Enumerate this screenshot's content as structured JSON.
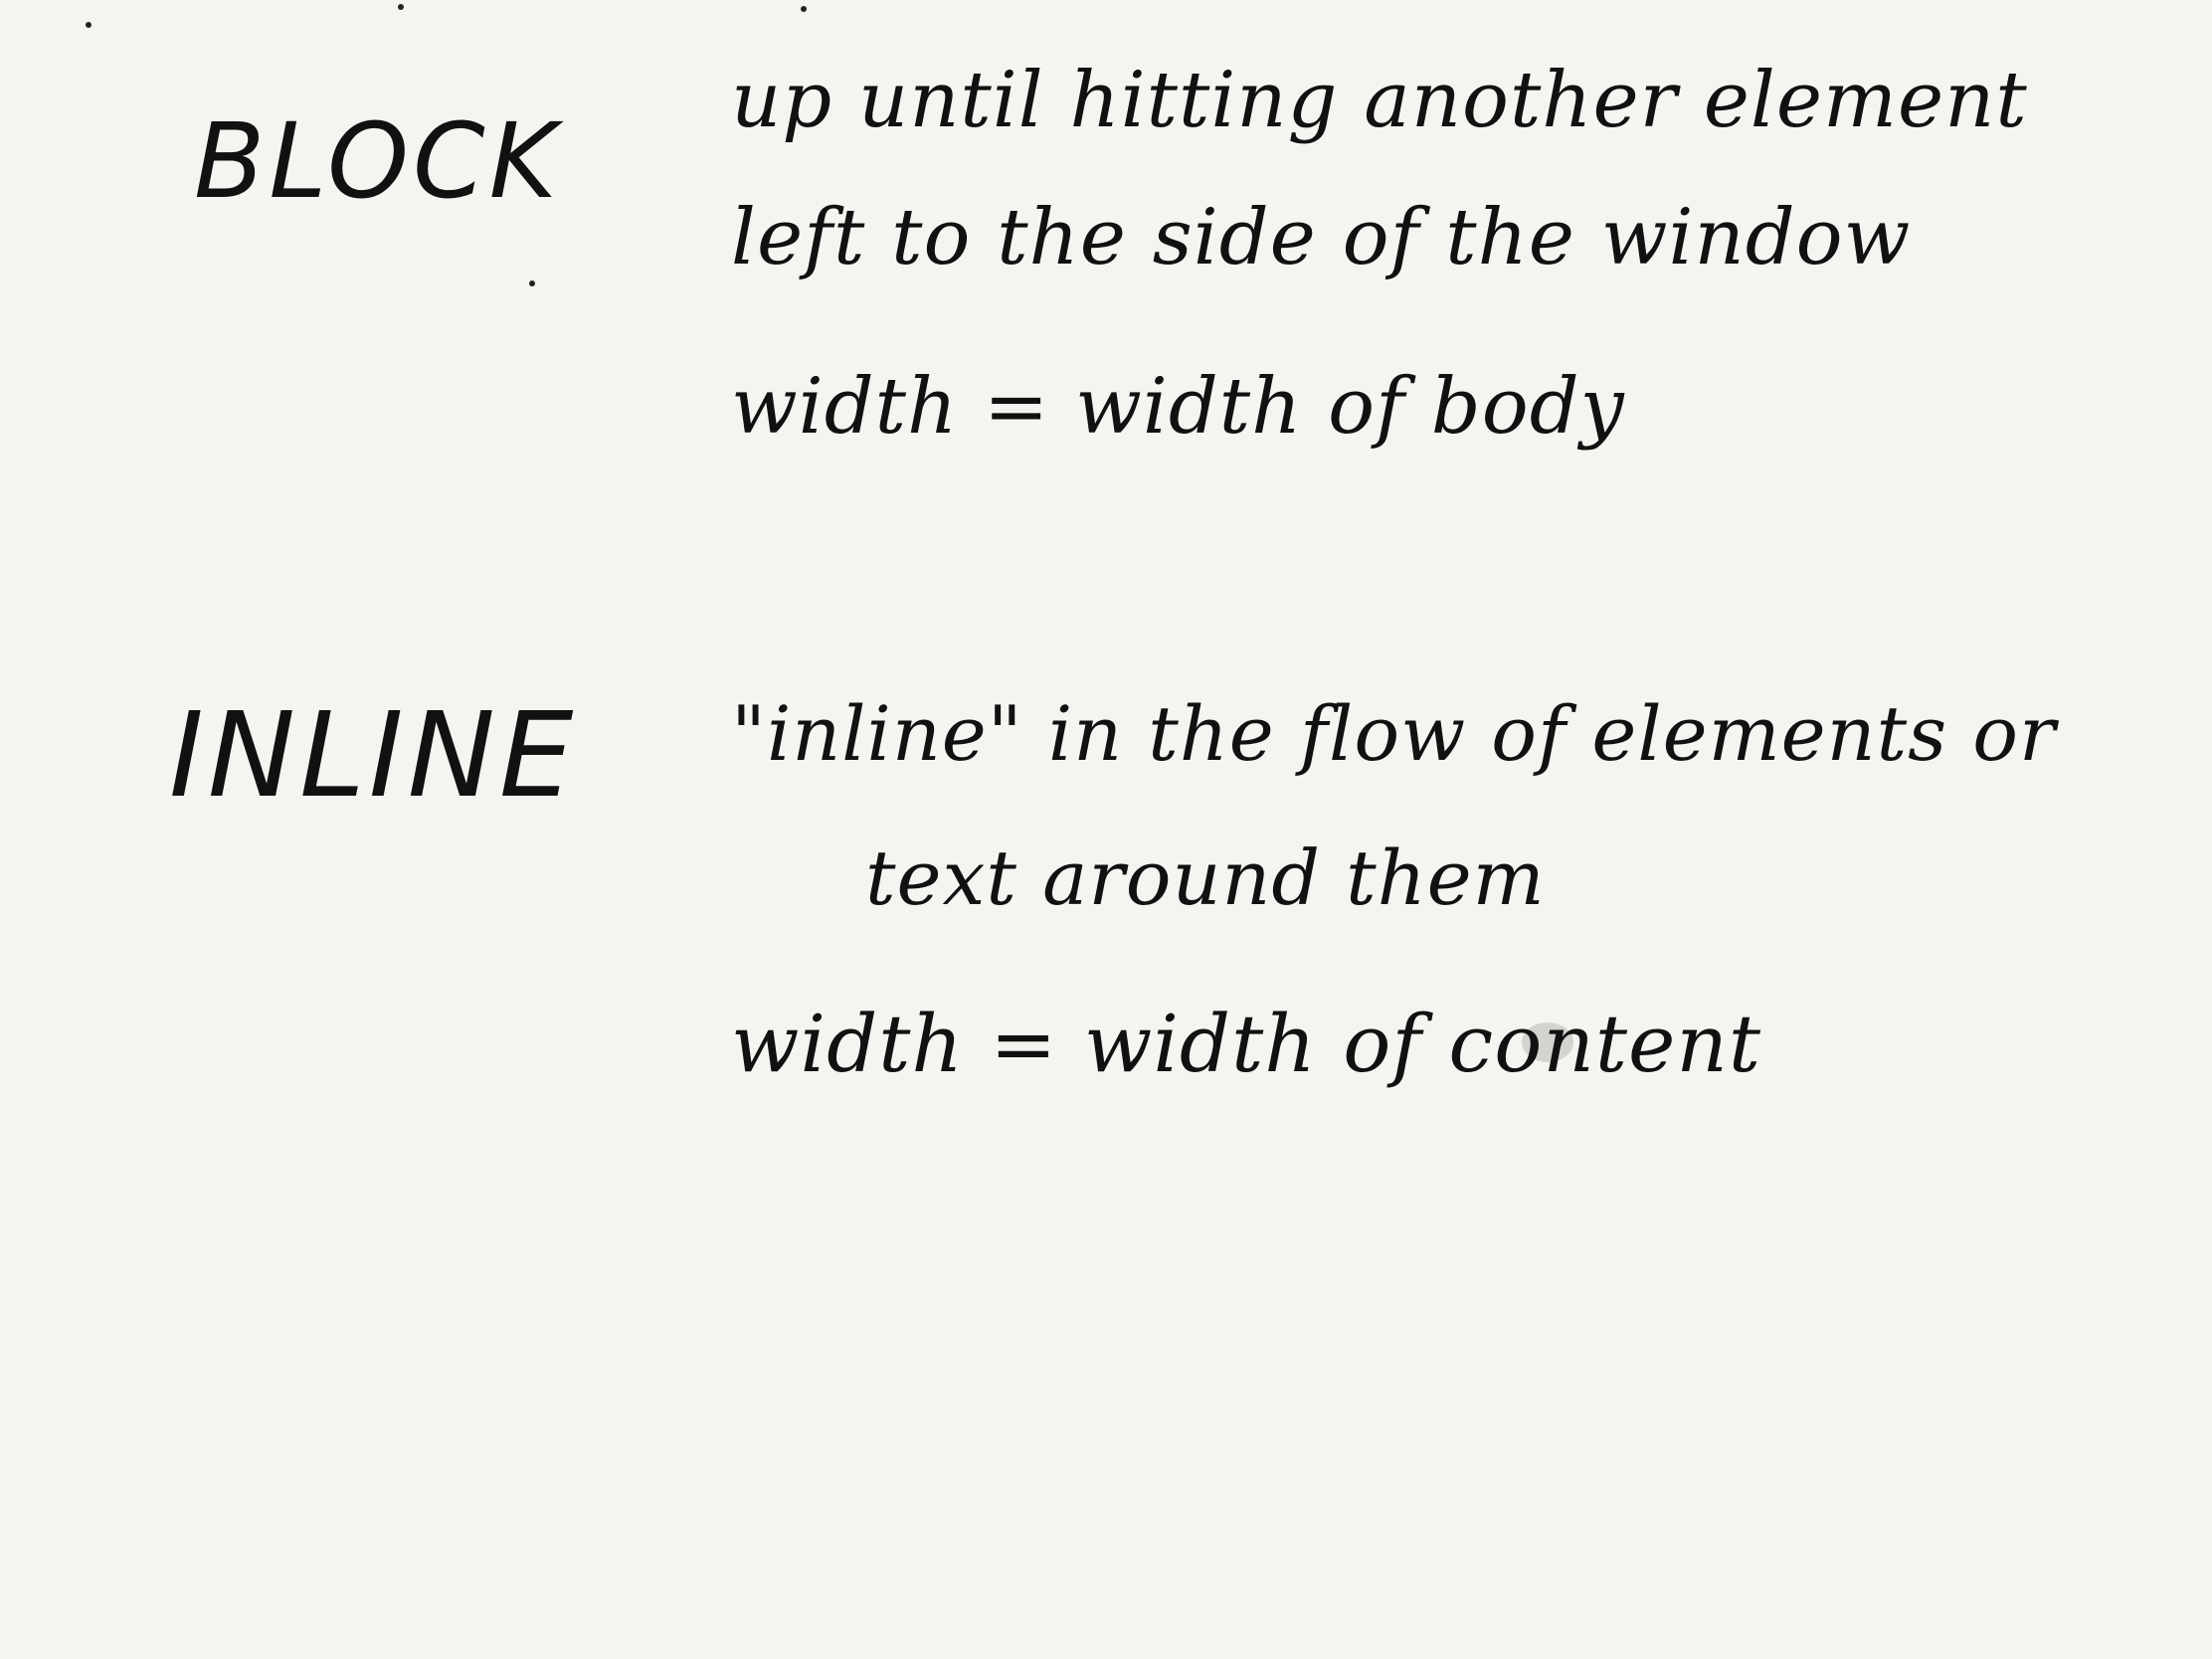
{
  "headings": {
    "block": "BLOCK",
    "inline": "INLINE"
  },
  "block_notes": {
    "line1": "up until hitting another element",
    "line2": "left to the side of the window",
    "line3": "width = width of body"
  },
  "inline_notes": {
    "line1": "\"inline\" in the flow of elements or",
    "line2": "text around them",
    "line3": "width = width of content"
  },
  "colors": {
    "background": "#f5f4f0",
    "ink": "#111111",
    "highlight": "#d3d3d0"
  }
}
